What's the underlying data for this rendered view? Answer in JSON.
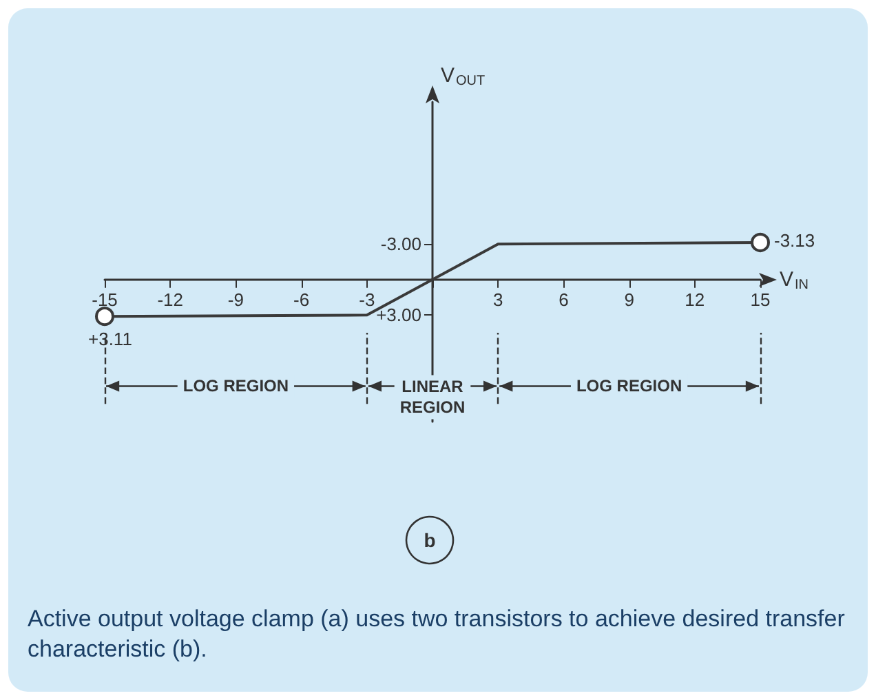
{
  "chart_data": {
    "type": "line",
    "xlabel": "V$_{IN}$",
    "ylabel": "V$_{OUT}$",
    "x": [
      -15,
      -3,
      3,
      15
    ],
    "series": [
      {
        "color": "#3a3a3a",
        "values": [
          3.11,
          3.0,
          -3.0,
          -3.13
        ]
      }
    ],
    "xlim": [
      -15,
      15
    ],
    "ylim": [
      12,
      -15
    ],
    "xticks": [
      {
        "value": -15,
        "label": "-15"
      },
      {
        "value": -12,
        "label": "-12"
      },
      {
        "value": -9,
        "label": "-9"
      },
      {
        "value": -6,
        "label": "-6"
      },
      {
        "value": -3,
        "label": "-3"
      },
      {
        "value": 0,
        "label": null
      },
      3,
      6,
      9,
      12,
      15
    ],
    "yticks": [
      {
        "value": -3,
        "label": "-3.00"
      },
      {
        "value": 3,
        "label": "+3.00"
      }
    ],
    "marker": "circle",
    "grid": false,
    "ref_lines": [
      {
        "axis": "x",
        "value": -15,
        "line_style": "dashed"
      },
      {
        "axis": "x",
        "value": -3,
        "line_style": "dashed"
      },
      {
        "axis": "x",
        "value": 3,
        "line_style": "dashed"
      },
      {
        "axis": "x",
        "value": 15,
        "line_style": "dashed"
      }
    ],
    "annotations": [
      "LOG REGION",
      "LINEAR\nREGION",
      "LOG REGION",
      {
        "text": "+3.11",
        "x": -15,
        "y": 3.11
      },
      {
        "text": "-3.13",
        "x": 15,
        "y": -3.13
      },
      "b",
      "Active output voltage clamp (a) uses two transistors to achieve desired transfer characteristic (b)."
    ]
  }
}
